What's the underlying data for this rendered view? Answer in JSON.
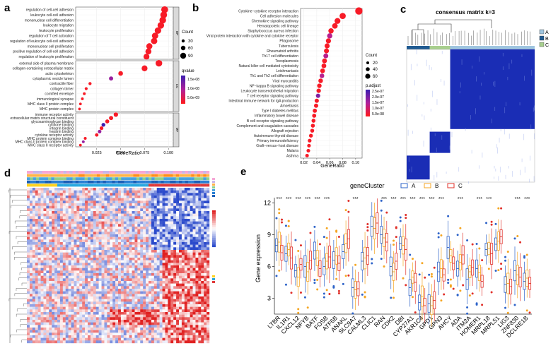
{
  "panels": {
    "a": {
      "label": "a",
      "chart_data": {
        "type": "scatter",
        "xlabel": "GeneRatio",
        "xlim": [
          0.003,
          0.105
        ],
        "xticks": [
          "0.025",
          "0.050",
          "0.075",
          "0.100"
        ],
        "xtick_values": [
          0.025,
          0.05,
          0.075,
          0.1
        ],
        "legend": {
          "size_title": "Count",
          "size_levels": [
            "30",
            "60",
            "90"
          ],
          "color_title": "qvalue",
          "color_levels": [
            "1.5e-08",
            "1.0e-08",
            "5.0e-09"
          ]
        },
        "facets": [
          {
            "name": "BP",
            "terms": [
              "regulation of cell-cell adhesion",
              "leukocyte cell-cell adhesion",
              "mononuclear cell differentiation",
              "leukocyte migration",
              "leukocyte proliferation",
              "regulation of T cell activation",
              "regulation of leukocyte cell-cell adhesion",
              "mononuclear cell proliferation",
              "positive regulation of cell-cell adhesion",
              "regulation of leukocyte proliferation"
            ],
            "ratio": [
              0.096,
              0.095,
              0.094,
              0.092,
              0.089,
              0.086,
              0.085,
              0.08,
              0.079,
              0.077
            ],
            "count": [
              95,
              93,
              92,
              90,
              88,
              85,
              84,
              80,
              78,
              76
            ]
          },
          {
            "name": "CC",
            "terms": [
              "external side of plasma membrane",
              "collagen-containing extracellular matrix",
              "actin cytoskeleton",
              "cytoplasmic vesicle lumen",
              "contractile fiber",
              "collagen trimer",
              "cornified envelope",
              "immunological synapse",
              "MHC class II protein complex",
              "MHC protein complex"
            ],
            "ratio": [
              0.09,
              0.075,
              0.05,
              0.04,
              0.018,
              0.014,
              0.012,
              0.01,
              0.008,
              0.007
            ],
            "count": [
              90,
              75,
              50,
              40,
              18,
              14,
              12,
              10,
              8,
              7
            ]
          },
          {
            "name": "MF",
            "terms": [
              "immune receptor activity",
              "extracellular matrix structural constituent",
              "glycosaminoglycan binding",
              "cytokine binding",
              "integrin binding",
              "heparin binding",
              "cytokine receptor activity",
              "MHC protein complex binding",
              "MHC class II protein complex binding",
              "MHC class II receptor activity"
            ],
            "ratio": [
              0.045,
              0.04,
              0.036,
              0.032,
              0.03,
              0.028,
              0.025,
              0.013,
              0.011,
              0.008
            ],
            "count": [
              45,
              40,
              36,
              32,
              30,
              28,
              25,
              13,
              11,
              8
            ]
          }
        ]
      }
    },
    "b": {
      "label": "b",
      "chart_data": {
        "type": "scatter",
        "xlabel": "GeneRatio",
        "xlim": [
          0.015,
          0.11
        ],
        "xticks": [
          "0.02",
          "0.04",
          "0.06",
          "0.08",
          "0.10"
        ],
        "xtick_values": [
          0.02,
          0.04,
          0.06,
          0.08,
          0.1
        ],
        "legend": {
          "size_title": "Count",
          "size_levels": [
            "20",
            "40",
            "60"
          ],
          "color_title": "p.adjust",
          "color_levels": [
            "2.5e-07",
            "2.0e-07",
            "1.5e-07",
            "1.0e-07",
            "5.0e-08"
          ]
        },
        "terms": [
          "Cytokine−cytokine receptor interaction",
          "Cell adhesion molecules",
          "Chemokine signaling pathway",
          "Hematopoietic cell lineage",
          "Staphylococcus aureus infection",
          "Viral protein interaction with cytokine and cytokine receptor",
          "Phagosome",
          "Tuberculosis",
          "Rheumatoid arthritis",
          "Th17 cell differentiation",
          "Toxoplasmosis",
          "Natural killer cell mediated cytotoxicity",
          "Leishmaniasis",
          "Th1 and Th2 cell differentiation",
          "Viral myocarditis",
          "NF−kappa B signaling pathway",
          "Leukocyte transendothelial migration",
          "T cell receptor signaling pathway",
          "Intestinal immune network for IgA production",
          "Amoebiasis",
          "Type I diabetes mellitus",
          "Inflammatory bowel disease",
          "B cell receptor signaling pathway",
          "Complement and coagulation cascades",
          "Allograft rejection",
          "Autoimmune thyroid disease",
          "Primary immunodeficiency",
          "Graft−versus−host disease",
          "Malaria",
          "Asthma"
        ],
        "ratio": [
          0.105,
          0.08,
          0.072,
          0.068,
          0.062,
          0.06,
          0.058,
          0.056,
          0.055,
          0.054,
          0.052,
          0.051,
          0.049,
          0.048,
          0.046,
          0.044,
          0.043,
          0.042,
          0.04,
          0.039,
          0.037,
          0.036,
          0.035,
          0.034,
          0.033,
          0.031,
          0.029,
          0.028,
          0.027,
          0.025
        ],
        "count": [
          62,
          48,
          44,
          40,
          37,
          36,
          35,
          34,
          33,
          32,
          31,
          31,
          30,
          29,
          28,
          27,
          26,
          25,
          24,
          24,
          23,
          22,
          21,
          21,
          20,
          19,
          18,
          17,
          17,
          16
        ]
      }
    },
    "c": {
      "label": "c",
      "title": "consensus matrix k=3",
      "legend": [
        {
          "name": "A",
          "color": "#9fc5df"
        },
        {
          "name": "B",
          "color": "#1f5a91"
        },
        {
          "name": "C",
          "color": "#a8cf8e"
        }
      ],
      "chart_data": {
        "type": "heatmap",
        "clusters": [
          "A",
          "B",
          "C"
        ],
        "cluster_share": [
          0.7,
          0.14,
          0.16
        ],
        "matrix_color": "#1a2db5"
      }
    },
    "d": {
      "label": "d",
      "chart_data": {
        "type": "heatmap",
        "annotation_tracks": [
          "Stage",
          "Type",
          "Project",
          "TNMstage",
          "geneCluster"
        ],
        "colors": {
          "low": "#2b4acb",
          "mid": "#ffffff",
          "high": "#e02020"
        }
      }
    },
    "e": {
      "label": "e",
      "legend_title": "geneCluster",
      "chart_data": {
        "type": "box",
        "ylabel": "Gene expression",
        "ylim": [
          1.5,
          12.5
        ],
        "yticks": [
          "3",
          "6",
          "9",
          "12"
        ],
        "ytick_values": [
          3,
          6,
          9,
          12
        ],
        "groups": [
          "A",
          "B",
          "C"
        ],
        "group_colors": [
          "#2f64c9",
          "#f5a623",
          "#e0302a"
        ],
        "categories": [
          "LTBR",
          "IL1R1",
          "CXCL12",
          "NFYB",
          "BATF",
          "FOSB",
          "ATF6B",
          "ANAKL",
          "SLC9A7",
          "CALML3",
          "CLIC1",
          "RAN",
          "CDK2",
          "DBI",
          "CYP27A1",
          "AKR1C4",
          "GPD1",
          "GPN3",
          "AHCY",
          "ADA",
          "ITM2A",
          "HOMER1",
          "MRPL18",
          "MRPL51",
          "LIG3",
          "ZNF830",
          "DCLRE1B"
        ],
        "significance": [
          "***",
          "***",
          "***",
          "***",
          "***",
          "***",
          "",
          "",
          "***",
          "",
          "",
          "***",
          "***",
          "***",
          "***",
          "***",
          "***",
          "***",
          "",
          "***",
          "",
          "***",
          "***",
          "",
          "",
          "***",
          "***"
        ],
        "series": [
          {
            "name": "A",
            "values": [
              8.0,
              7.2,
              5.6,
              6.0,
              7.5,
              6.0,
              6.6,
              7.4,
              4.0,
              6.5,
              9.8,
              9.0,
              6.0,
              8.2,
              4.0,
              2.6,
              2.5,
              5.5,
              7.8,
              5.8,
              4.8,
              5.8,
              7.6,
              8.1,
              4.3,
              5.6,
              4.6
            ]
          },
          {
            "name": "B",
            "values": [
              8.3,
              7.6,
              5.0,
              5.5,
              6.8,
              6.5,
              7.0,
              8.2,
              3.8,
              6.8,
              9.6,
              8.7,
              5.5,
              8.0,
              5.0,
              3.2,
              2.3,
              5.8,
              7.0,
              6.4,
              5.5,
              5.4,
              7.7,
              8.4,
              4.4,
              5.2,
              4.9
            ]
          },
          {
            "name": "C",
            "values": [
              7.3,
              6.8,
              6.2,
              6.6,
              5.8,
              6.9,
              6.3,
              8.6,
              3.9,
              7.0,
              10.1,
              8.3,
              6.5,
              7.6,
              4.5,
              2.3,
              2.8,
              5.2,
              6.3,
              7.1,
              5.9,
              4.6,
              7.2,
              8.8,
              4.1,
              5.0,
              4.4
            ]
          }
        ]
      }
    }
  }
}
